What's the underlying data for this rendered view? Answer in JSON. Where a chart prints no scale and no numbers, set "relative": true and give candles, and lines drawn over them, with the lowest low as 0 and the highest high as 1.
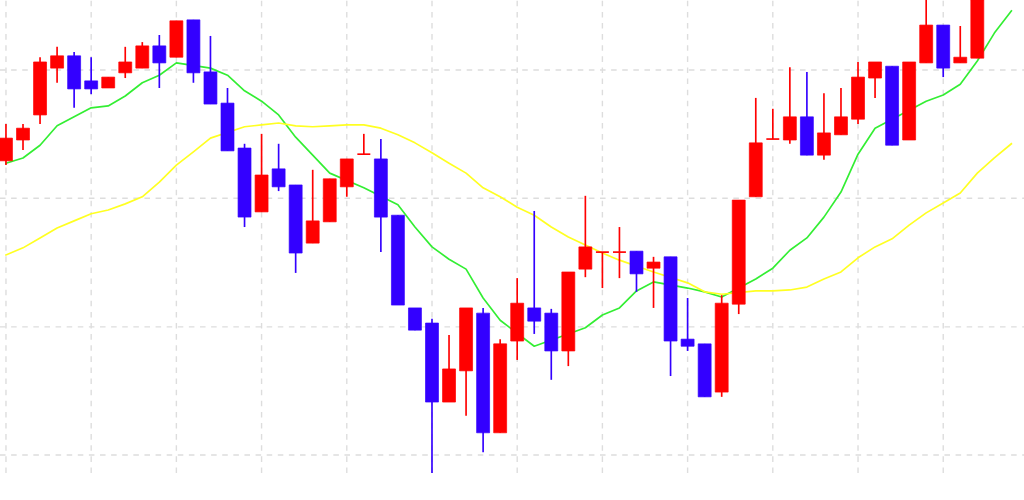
{
  "chart_data": {
    "type": "candlestick",
    "relative": true,
    "grid": true,
    "categories": [
      null,
      null,
      null,
      null,
      null,
      null,
      null,
      null,
      null,
      null,
      null,
      null,
      null,
      null,
      null,
      null,
      null,
      null,
      null,
      null,
      null,
      null,
      null,
      null,
      null,
      null,
      null,
      null,
      null,
      null,
      null,
      null,
      null,
      null,
      null,
      null,
      null,
      null,
      null,
      null,
      null,
      null,
      null,
      null,
      null,
      null,
      null,
      null,
      null,
      null,
      null,
      null,
      null,
      null,
      null,
      null,
      null,
      null,
      null,
      null
    ],
    "ohlc": [
      [
        0.66,
        0.738,
        0.651,
        0.708
      ],
      [
        0.704,
        0.738,
        0.683,
        0.729
      ],
      [
        0.757,
        0.879,
        0.738,
        0.869
      ],
      [
        0.856,
        0.901,
        0.825,
        0.882
      ],
      [
        0.882,
        0.89,
        0.772,
        0.812
      ],
      [
        0.829,
        0.879,
        0.801,
        0.812
      ],
      [
        0.814,
        0.837,
        0.814,
        0.837
      ],
      [
        0.846,
        0.901,
        0.835,
        0.869
      ],
      [
        0.856,
        0.911,
        0.856,
        0.903
      ],
      [
        0.903,
        0.926,
        0.814,
        0.867
      ],
      [
        0.879,
        0.956,
        0.879,
        0.956
      ],
      [
        0.958,
        0.958,
        0.825,
        0.846
      ],
      [
        0.848,
        0.924,
        0.78,
        0.78
      ],
      [
        0.782,
        0.814,
        0.681,
        0.681
      ],
      [
        0.687,
        0.696,
        0.52,
        0.541
      ],
      [
        0.552,
        0.717,
        0.552,
        0.63
      ],
      [
        0.643,
        0.696,
        0.596,
        0.605
      ],
      [
        0.609,
        0.609,
        0.423,
        0.465
      ],
      [
        0.486,
        0.641,
        0.486,
        0.533
      ],
      [
        0.531,
        0.622,
        0.531,
        0.622
      ],
      [
        0.605,
        0.664,
        0.584,
        0.664
      ],
      [
        0.674,
        0.717,
        0.674,
        0.674
      ],
      [
        0.664,
        0.706,
        0.467,
        0.541
      ],
      [
        0.545,
        0.545,
        0.355,
        0.355
      ],
      [
        0.349,
        0.349,
        0.302,
        0.302
      ],
      [
        0.317,
        0.326,
        0,
        0.15
      ],
      [
        0.15,
        0.292,
        0.15,
        0.22
      ],
      [
        0.216,
        0.349,
        0.121,
        0.349
      ],
      [
        0.338,
        0.349,
        0.044,
        0.085
      ],
      [
        0.085,
        0.283,
        0.085,
        0.273
      ],
      [
        0.279,
        0.412,
        0.239,
        0.359
      ],
      [
        0.349,
        0.554,
        0.294,
        0.321
      ],
      [
        0.338,
        0.347,
        0.197,
        0.258
      ],
      [
        0.258,
        0.425,
        0.226,
        0.425
      ],
      [
        0.431,
        0.586,
        0.414,
        0.478
      ],
      [
        0.467,
        0.467,
        0.391,
        0.467
      ],
      [
        0.467,
        0.52,
        0.412,
        0.467
      ],
      [
        0.469,
        0.469,
        0.383,
        0.421
      ],
      [
        0.433,
        0.457,
        0.349,
        0.446
      ],
      [
        0.457,
        0.457,
        0.205,
        0.279
      ],
      [
        0.283,
        0.37,
        0.258,
        0.268
      ],
      [
        0.273,
        0.273,
        0.161,
        0.161
      ],
      [
        0.171,
        0.376,
        0.161,
        0.359
      ],
      [
        0.357,
        0.577,
        0.336,
        0.577
      ],
      [
        0.584,
        0.793,
        0.584,
        0.698
      ],
      [
        0.706,
        0.77,
        0.706,
        0.706
      ],
      [
        0.704,
        0.858,
        0.696,
        0.753
      ],
      [
        0.753,
        0.848,
        0.672,
        0.672
      ],
      [
        0.672,
        0.803,
        0.662,
        0.719
      ],
      [
        0.715,
        0.814,
        0.715,
        0.753
      ],
      [
        0.748,
        0.869,
        0.738,
        0.837
      ],
      [
        0.835,
        0.869,
        0.793,
        0.869
      ],
      [
        0.86,
        0.86,
        0.693,
        0.693
      ],
      [
        0.704,
        0.869,
        0.704,
        0.869
      ],
      [
        0.867,
        1,
        0.867,
        0.947
      ],
      [
        0.947,
        0.947,
        0.837,
        0.856
      ],
      [
        0.867,
        0.945,
        0.867,
        0.879
      ],
      [
        0.877,
        1,
        0.877,
        1
      ],
      null,
      null
    ],
    "colors": [
      "#ff0000",
      "#ff0000",
      "#ff0000",
      "#ff0000",
      "#3300ff",
      "#3300ff",
      "#ff0000",
      "#ff0000",
      "#ff0000",
      "#3300ff",
      "#ff0000",
      "#3300ff",
      "#3300ff",
      "#3300ff",
      "#3300ff",
      "#ff0000",
      "#3300ff",
      "#3300ff",
      "#ff0000",
      "#ff0000",
      "#ff0000",
      "#ff0000",
      "#3300ff",
      "#3300ff",
      "#3300ff",
      "#3300ff",
      "#ff0000",
      "#ff0000",
      "#3300ff",
      "#ff0000",
      "#ff0000",
      "#3300ff",
      "#3300ff",
      "#ff0000",
      "#ff0000",
      "#ff0000",
      "#ff0000",
      "#3300ff",
      "#ff0000",
      "#3300ff",
      "#3300ff",
      "#3300ff",
      "#ff0000",
      "#ff0000",
      "#ff0000",
      "#ff0000",
      "#ff0000",
      "#3300ff",
      "#ff0000",
      "#ff0000",
      "#ff0000",
      "#ff0000",
      "#3300ff",
      "#ff0000",
      "#ff0000",
      "#3300ff",
      "#ff0000",
      "#ff0000",
      null,
      null
    ],
    "series": [
      {
        "type": "line",
        "color": "#33ee33",
        "values": [
          0.655,
          0.666,
          0.693,
          0.734,
          0.753,
          0.772,
          0.776,
          0.797,
          0.825,
          0.841,
          0.867,
          null,
          0.856,
          0.841,
          0.808,
          0.786,
          0.757,
          0.71,
          0.672,
          0.634,
          null,
          0.603,
          null,
          0.567,
          0.52,
          0.478,
          0.452,
          0.431,
          0.37,
          0.323,
          null,
          0.268,
          null,
          null,
          0.307,
          0.334,
          0.349,
          0.385,
          0.404,
          null,
          0.391,
          0.383,
          0.372,
          null,
          0.41,
          0.433,
          0.471,
          0.497,
          0.541,
          0.594,
          0.674,
          0.729,
          null,
          null,
          0.786,
          0.799,
          0.822,
          0.871,
          0.93,
          0.977
        ]
      },
      {
        "type": "line",
        "color": "#ffff22",
        "values": [
          0.461,
          0.476,
          0.497,
          0.518,
          0.533,
          0.548,
          0.556,
          0.569,
          0.584,
          0.615,
          0.651,
          0.679,
          0.708,
          null,
          0.732,
          0.736,
          0.74,
          0.734,
          0.732,
          0.734,
          0.736,
          0.736,
          0.729,
          0.715,
          0.698,
          0.677,
          0.655,
          0.634,
          0.603,
          0.584,
          0.562,
          0.545,
          0.52,
          0.499,
          0.482,
          0.465,
          0.45,
          null,
          0.425,
          null,
          0.402,
          0.383,
          0.378,
          null,
          0.385,
          0.385,
          0.387,
          0.393,
          0.41,
          0.425,
          0.455,
          0.478,
          0.495,
          0.524,
          0.55,
          0.571,
          0.592,
          0.634,
          0.666,
          0.696
        ]
      }
    ]
  }
}
